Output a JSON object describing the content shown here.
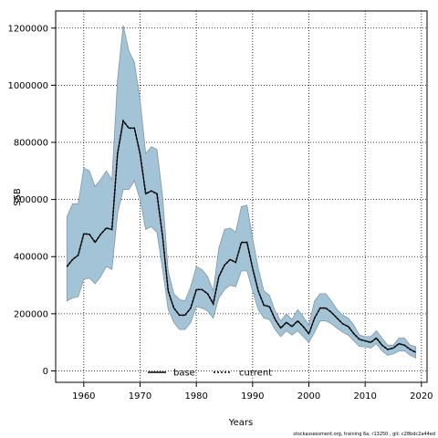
{
  "chart_data": {
    "type": "line",
    "xlabel": "Years",
    "ylabel": "SSB",
    "xlim": [
      1955,
      2021
    ],
    "ylim": [
      -40000,
      1260000
    ],
    "x_ticks": [
      1960,
      1970,
      1980,
      1990,
      2000,
      2010,
      2020
    ],
    "y_ticks": [
      0,
      200000,
      400000,
      600000,
      800000,
      1000000,
      1200000
    ],
    "grid": true,
    "legend_position": "bottom-center",
    "band_color": "#a2c4d6",
    "band_edge_color": "#7f97a8",
    "x": [
      1957,
      1958,
      1959,
      1960,
      1961,
      1962,
      1963,
      1964,
      1965,
      1966,
      1967,
      1968,
      1969,
      1970,
      1971,
      1972,
      1973,
      1974,
      1975,
      1976,
      1977,
      1978,
      1979,
      1980,
      1981,
      1982,
      1983,
      1984,
      1985,
      1986,
      1987,
      1988,
      1989,
      1990,
      1991,
      1992,
      1993,
      1994,
      1995,
      1996,
      1997,
      1998,
      1999,
      2000,
      2001,
      2002,
      2003,
      2004,
      2005,
      2006,
      2007,
      2008,
      2009,
      2010,
      2011,
      2012,
      2013,
      2014,
      2015,
      2016,
      2017,
      2018,
      2019
    ],
    "series": [
      {
        "name": "base",
        "color": "#000000",
        "style": "solid",
        "values": [
          365000,
          390000,
          405000,
          480000,
          478000,
          450000,
          478000,
          500000,
          495000,
          760000,
          875000,
          850000,
          850000,
          760000,
          620000,
          630000,
          620000,
          470000,
          280000,
          220000,
          195000,
          195000,
          220000,
          285000,
          285000,
          270000,
          235000,
          330000,
          370000,
          390000,
          380000,
          450000,
          450000,
          360000,
          280000,
          230000,
          225000,
          180000,
          150000,
          170000,
          155000,
          175000,
          155000,
          130000,
          185000,
          220000,
          220000,
          205000,
          185000,
          165000,
          155000,
          130000,
          110000,
          105000,
          100000,
          115000,
          90000,
          75000,
          80000,
          95000,
          90000,
          75000,
          65000
        ]
      },
      {
        "name": "current",
        "color": "#000000",
        "style": "dotted",
        "values": [
          365000,
          390000,
          405000,
          480000,
          478000,
          450000,
          478000,
          500000,
          495000,
          760000,
          875000,
          850000,
          850000,
          760000,
          620000,
          630000,
          620000,
          470000,
          280000,
          220000,
          195000,
          195000,
          220000,
          285000,
          285000,
          270000,
          235000,
          330000,
          370000,
          390000,
          380000,
          450000,
          450000,
          360000,
          280000,
          230000,
          225000,
          180000,
          150000,
          170000,
          155000,
          175000,
          155000,
          130000,
          185000,
          220000,
          220000,
          205000,
          185000,
          165000,
          155000,
          130000,
          110000,
          105000,
          100000,
          115000,
          90000,
          75000,
          80000,
          95000,
          90000,
          75000,
          65000
        ]
      }
    ],
    "band": {
      "upper": [
        540000,
        585000,
        585000,
        710000,
        700000,
        645000,
        670000,
        700000,
        670000,
        1020000,
        1210000,
        1120000,
        1080000,
        950000,
        760000,
        785000,
        775000,
        610000,
        350000,
        270000,
        250000,
        245000,
        295000,
        365000,
        355000,
        330000,
        280000,
        430000,
        495000,
        500000,
        485000,
        575000,
        580000,
        465000,
        360000,
        280000,
        265000,
        210000,
        175000,
        200000,
        180000,
        215000,
        190000,
        160000,
        245000,
        270000,
        270000,
        245000,
        215000,
        195000,
        185000,
        160000,
        125000,
        120000,
        120000,
        140000,
        115000,
        90000,
        90000,
        115000,
        115000,
        90000,
        85000
      ],
      "lower": [
        245000,
        255000,
        260000,
        320000,
        325000,
        305000,
        330000,
        365000,
        355000,
        550000,
        635000,
        635000,
        665000,
        600000,
        495000,
        505000,
        485000,
        355000,
        215000,
        170000,
        145000,
        145000,
        170000,
        225000,
        220000,
        210000,
        185000,
        255000,
        285000,
        300000,
        295000,
        350000,
        350000,
        280000,
        215000,
        185000,
        180000,
        145000,
        120000,
        140000,
        125000,
        140000,
        120000,
        100000,
        135000,
        175000,
        175000,
        165000,
        150000,
        135000,
        125000,
        105000,
        85000,
        85000,
        80000,
        95000,
        70000,
        55000,
        60000,
        70000,
        70000,
        55000,
        45000
      ]
    }
  },
  "footer_text": "stockassessment.org, training 6a, r13250 , git: c28bdc2a44ed"
}
